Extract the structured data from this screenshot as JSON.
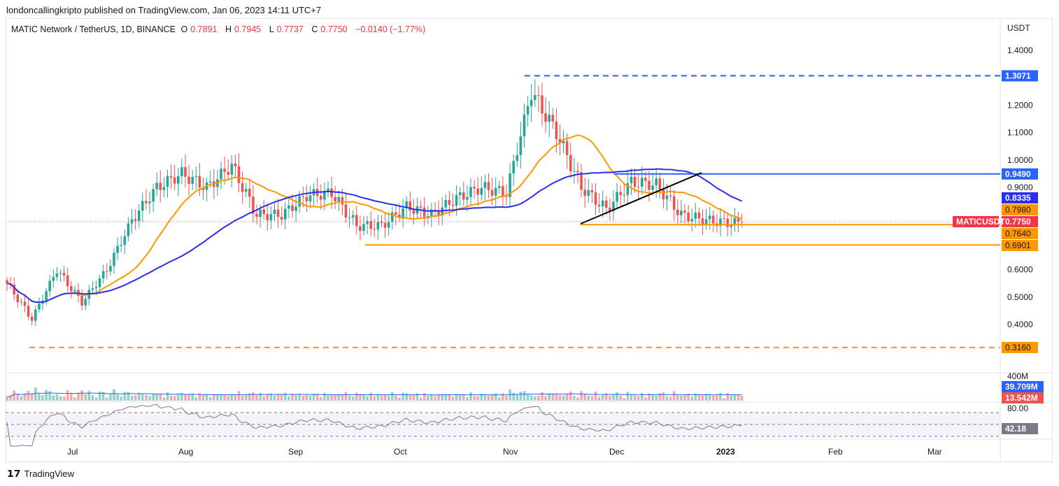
{
  "publisher": "londoncallingkripto published on TradingView.com, Jan 06, 2023 14:11 UTC+7",
  "legend": {
    "symbol": "MATIC Network / TetherUS, 1D, BINANCE",
    "o_label": "O",
    "o": "0.7891",
    "h_label": "H",
    "h": "0.7945",
    "l_label": "L",
    "l": "0.7737",
    "c_label": "C",
    "c": "0.7750",
    "change": "−0.0140 (−1.77%)"
  },
  "footer": {
    "brand": "TradingView"
  },
  "colors": {
    "up": "#26a69a",
    "down": "#ef5350",
    "ma_fast": "#ff9800",
    "ma_slow": "#2a2ef0",
    "blue": "#2962ff",
    "orange": "#ff9800"
  },
  "chart_data": {
    "type": "candlestick",
    "currency": "USDT",
    "ylim": [
      0.3,
      1.45
    ],
    "y_ticks": [
      "1.4000",
      "1.2000",
      "1.1000",
      "1.0000",
      "0.9000",
      "0.6000",
      "0.5000",
      "0.4000"
    ],
    "x_ticks": [
      "Jul",
      "Aug",
      "Sep",
      "Oct",
      "Nov",
      "Dec",
      "2023",
      "Feb",
      "Mar"
    ],
    "close_keypoints_by_week": [
      0.55,
      0.42,
      0.6,
      0.48,
      0.6,
      0.78,
      0.9,
      0.95,
      0.9,
      0.98,
      0.8,
      0.8,
      0.87,
      0.88,
      0.76,
      0.76,
      0.83,
      0.8,
      0.86,
      0.9,
      0.88,
      1.25,
      1.1,
      0.9,
      0.82,
      0.92,
      0.91,
      0.8,
      0.78,
      0.77,
      0.775
    ],
    "levels": [
      {
        "label": "1.3071",
        "value": 1.3071,
        "color": "#2962ff",
        "style": "dashed"
      },
      {
        "label": "0.9490",
        "value": 0.949,
        "color": "#2962ff",
        "style": "solid"
      },
      {
        "label": "0.7640",
        "value": 0.764,
        "color": "#ff9800",
        "style": "solid"
      },
      {
        "label": "0.6901",
        "value": 0.6901,
        "color": "#ff9800",
        "style": "solid"
      },
      {
        "label": "0.3160",
        "value": 0.316,
        "color": "#ff9800",
        "style": "dashed"
      }
    ],
    "ma_labels": [
      {
        "label": "0.8335",
        "color": "#2a2ef0"
      },
      {
        "label": "0.7980",
        "color": "#ff9800"
      }
    ],
    "last_price": {
      "symbol": "MATICUSDT",
      "label": "0.7750",
      "value": 0.775
    },
    "volume": {
      "top_label": "400M",
      "ma_label": "39.709M",
      "last_label": "13.542M"
    },
    "rsi": {
      "top_label": "80.00",
      "last_label": "42.18"
    }
  }
}
